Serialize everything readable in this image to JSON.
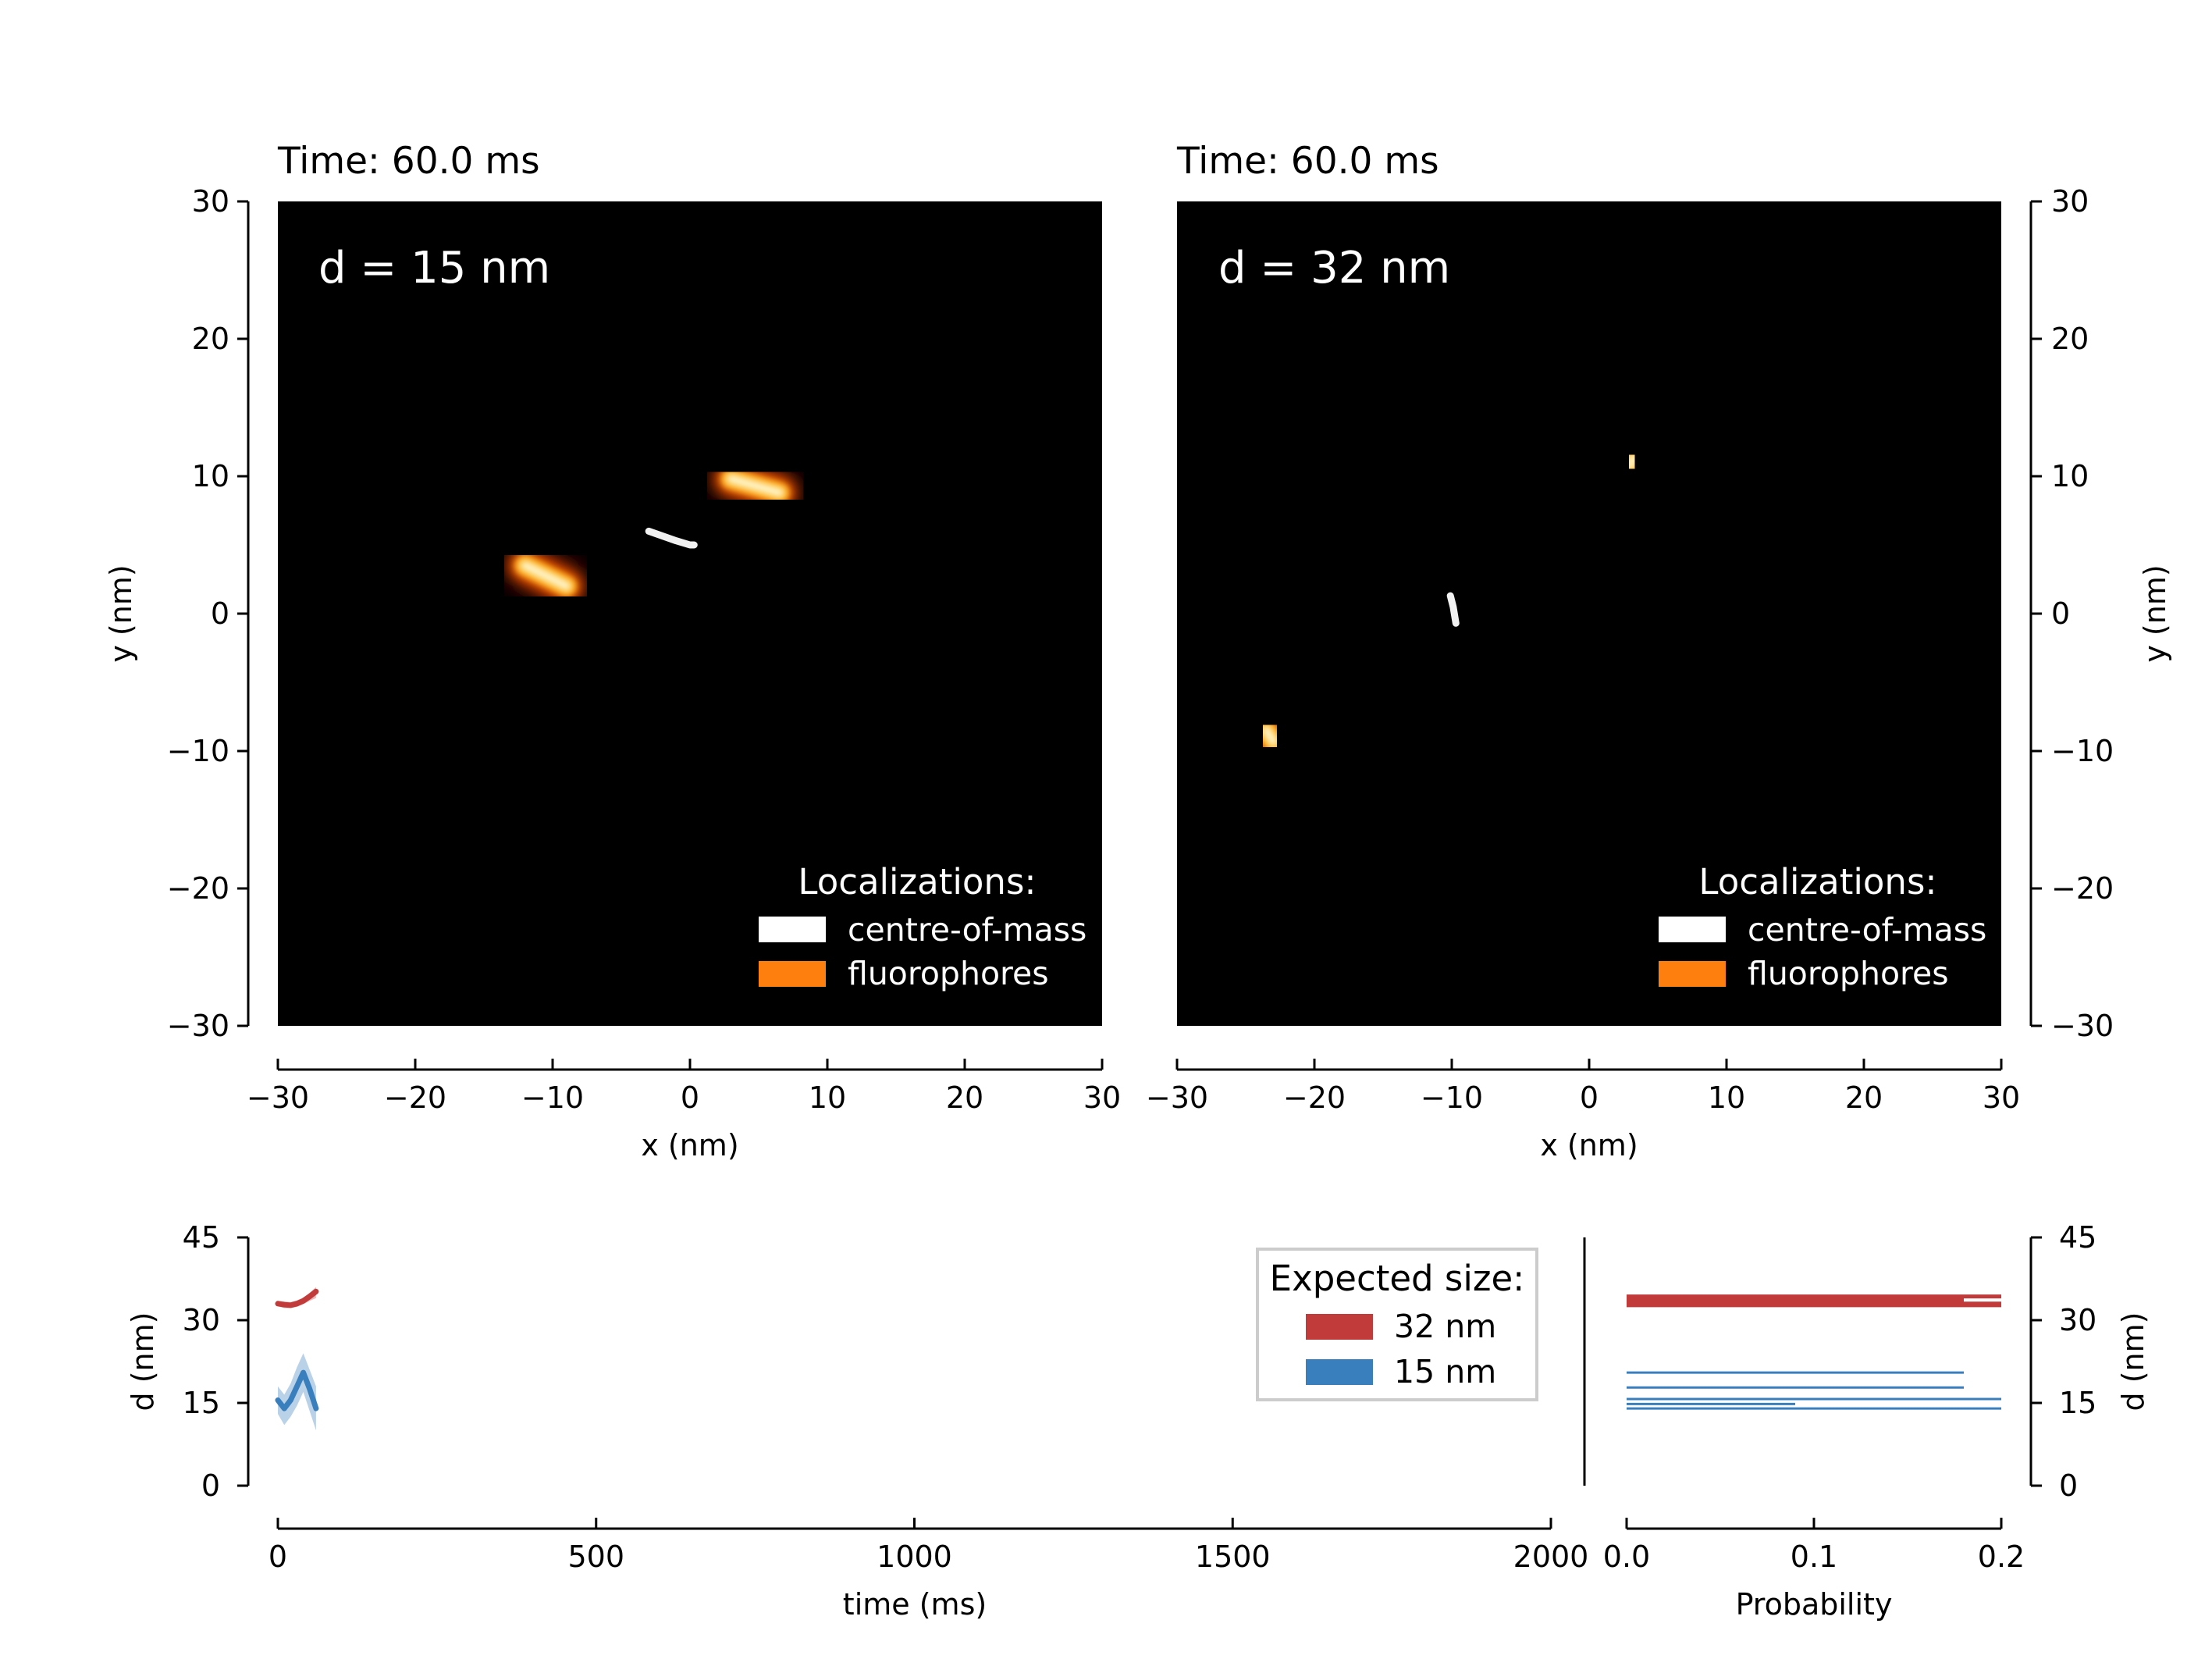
{
  "panels": [
    {
      "title": "Time: 60.0 ms",
      "label": "d = 15 nm",
      "xlabel": "x (nm)",
      "ylabel": "y (nm)",
      "legend_title": "Localizations:",
      "legend_items": [
        {
          "name": "centre-of-mass",
          "color": "#ffffff"
        },
        {
          "name": "fluorophores",
          "color": "#ff7f0e"
        }
      ]
    },
    {
      "title": "Time: 60.0 ms",
      "label": "d = 32 nm",
      "xlabel": "x (nm)",
      "ylabel": "y (nm)",
      "legend_title": "Localizations:",
      "legend_items": [
        {
          "name": "centre-of-mass",
          "color": "#ffffff"
        },
        {
          "name": "fluorophores",
          "color": "#ff7f0e"
        }
      ]
    }
  ],
  "timeseries": {
    "xlabel": "time (ms)",
    "ylabel": "d (nm)",
    "legend_title": "Expected size:",
    "legend_items": [
      {
        "name": "32 nm",
        "color": "#c23b3b"
      },
      {
        "name": "15 nm",
        "color": "#3a7fbd"
      }
    ]
  },
  "histogram": {
    "xlabel": "Probability",
    "ylabel": "d (nm)"
  },
  "chart_data": [
    {
      "type": "heatmap",
      "title": "Time: 60.0 ms",
      "annotation": "d = 15 nm",
      "xlabel": "x (nm)",
      "ylabel": "y (nm)",
      "xlim": [
        -30,
        30
      ],
      "ylim": [
        -30,
        30
      ],
      "xticks": [
        -30,
        -20,
        -10,
        0,
        10,
        20,
        30
      ],
      "yticks": [
        -30,
        -20,
        -10,
        0,
        10,
        20,
        30
      ],
      "background": "#000000",
      "fluorophore_blobs": [
        {
          "x1": -12,
          "y1": 3.5,
          "x2": -9,
          "y2": 2.0
        },
        {
          "x1": 3,
          "y1": 9.8,
          "x2": 6.5,
          "y2": 8.8
        }
      ],
      "centre_of_mass_track": [
        [
          -3,
          6
        ],
        [
          -1,
          5.3
        ],
        [
          0,
          5.0
        ],
        [
          0.3,
          5.0
        ]
      ],
      "legend_title": "Localizations:",
      "legend": [
        "centre-of-mass",
        "fluorophores"
      ],
      "legend_position": "lower-right"
    },
    {
      "type": "heatmap",
      "title": "Time: 60.0 ms",
      "annotation": "d = 32 nm",
      "xlabel": "x (nm)",
      "ylabel": "y (nm)",
      "xlim": [
        -30,
        30
      ],
      "ylim": [
        -30,
        30
      ],
      "xticks": [
        -30,
        -20,
        -10,
        0,
        10,
        20,
        30
      ],
      "yticks": [
        -30,
        -20,
        -10,
        0,
        10,
        20,
        30
      ],
      "background": "#000000",
      "fluorophore_blobs": [
        {
          "x1": -23.5,
          "y1": -8.5,
          "x2": -23,
          "y2": -9.3
        },
        {
          "x1": 3.2,
          "y1": 11.3,
          "x2": 3.0,
          "y2": 10.8
        }
      ],
      "centre_of_mass_track": [
        [
          -10.1,
          1.3
        ],
        [
          -9.9,
          0.5
        ],
        [
          -9.7,
          -0.7
        ]
      ],
      "legend_title": "Localizations:",
      "legend": [
        "centre-of-mass",
        "fluorophores"
      ],
      "legend_position": "lower-right"
    },
    {
      "type": "line",
      "xlabel": "time (ms)",
      "ylabel": "d (nm)",
      "xlim": [
        0,
        2000
      ],
      "ylim": [
        0,
        45
      ],
      "xticks": [
        0,
        500,
        1000,
        1500,
        2000
      ],
      "yticks": [
        0,
        15,
        30,
        45
      ],
      "legend_title": "Expected size:",
      "legend_position": "top-right",
      "series": [
        {
          "name": "32 nm",
          "color": "#c23b3b",
          "x": [
            0,
            10,
            20,
            30,
            40,
            50,
            60
          ],
          "y": [
            33.0,
            32.8,
            32.7,
            33.0,
            33.5,
            34.3,
            35.2
          ],
          "y_low": [
            32.5,
            32.2,
            32.2,
            32.4,
            32.9,
            33.5,
            34.0
          ],
          "y_high": [
            33.5,
            33.4,
            33.3,
            33.6,
            34.1,
            35.0,
            36.0
          ]
        },
        {
          "name": "15 nm",
          "color": "#3a7fbd",
          "x": [
            0,
            10,
            20,
            30,
            40,
            50,
            60
          ],
          "y": [
            15.5,
            14.0,
            15.5,
            18.0,
            20.5,
            17.5,
            14.0
          ],
          "y_low": [
            13.0,
            11.0,
            12.5,
            14.5,
            17.0,
            13.5,
            10.0
          ],
          "y_high": [
            18.0,
            16.5,
            18.5,
            21.5,
            24.0,
            21.0,
            18.0
          ]
        }
      ]
    },
    {
      "type": "bar",
      "orientation": "horizontal",
      "xlabel": "Probability",
      "ylabel": "d (nm)",
      "xlim": [
        0,
        0.2
      ],
      "ylim": [
        0,
        45
      ],
      "xticks": [
        0.0,
        0.1,
        0.2
      ],
      "yticks": [
        0,
        15,
        30,
        45
      ],
      "series": [
        {
          "name": "32 nm",
          "color": "#c23b3b",
          "bins": [
            {
              "d": 34.3,
              "p": 0.2
            },
            {
              "d": 33.6,
              "p": 0.18
            },
            {
              "d": 33.0,
              "p": 0.2
            },
            {
              "d": 32.7,
              "p": 0.2
            }
          ]
        },
        {
          "name": "15 nm",
          "color": "#3a7fbd",
          "bins": [
            {
              "d": 20.5,
              "p": 0.18
            },
            {
              "d": 17.8,
              "p": 0.18
            },
            {
              "d": 15.7,
              "p": 0.2
            },
            {
              "d": 14.8,
              "p": 0.09
            },
            {
              "d": 14.0,
              "p": 0.2
            }
          ]
        }
      ]
    }
  ]
}
